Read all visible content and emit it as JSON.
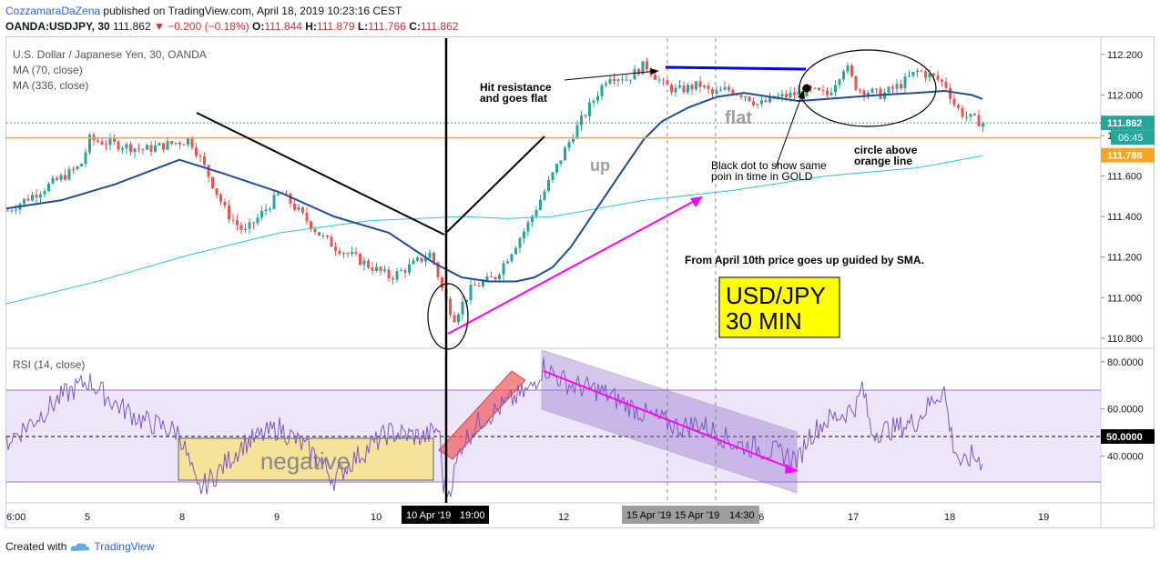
{
  "header": {
    "author": "CozzamaraDaZena",
    "published_text": "published on TradingView.com, April 18, 2019 10:23:16 CEST",
    "symbol": "OANDA:USDJPY, 30",
    "last": "111.862",
    "change": "−0.200 (−0.18%)",
    "o_label": "O:",
    "o": "111.844",
    "h_label": "H:",
    "h": "111.879",
    "l_label": "L:",
    "l": "111.766",
    "c_label": "C:",
    "c": "111.862"
  },
  "legend": {
    "title": "U.S. Dollar / Japanese Yen, 30, OANDA",
    "ma1": "MA (70, close)",
    "ma2": "MA (336, close)",
    "rsi": "RSI (14, close)"
  },
  "annotations": {
    "hit1": "Hit resistance",
    "hit2": "and goes flat",
    "flat": "flat",
    "up": "up",
    "circle1": "circle above",
    "circle2": "orange line",
    "dot1": "Black dot to show same",
    "dot2": "poin in time in GOLD",
    "april": "From April 10th price goes up guided by SMA.",
    "box1": "USD/JPY",
    "box2": "30 MIN",
    "negative": "negative"
  },
  "price_labels": {
    "last": "111.862",
    "countdown": "06:45",
    "orange": "111.788",
    "rsi_mid": "50.0000"
  },
  "time_labels": {
    "sel1": "10 Apr '19",
    "sel1b": "19:00",
    "sel2": "15 Apr '19",
    "sel3": "15 Apr '19",
    "sel3b": "14:30"
  },
  "footer": {
    "created": "Created with",
    "brand": "TradingView"
  },
  "colors": {
    "up": "#26a69a",
    "down": "#ef5350",
    "ma70": "#1e4d9b",
    "ma336": "#26c6da",
    "rsi": "#7e57c2",
    "orange": "#f5a623",
    "magenta": "#ff00ff",
    "blue_line": "#0000ff"
  },
  "chart_data": [
    {
      "type": "candlestick",
      "title": "U.S. Dollar / Japanese Yen, 30, OANDA",
      "x_tick_labels": [
        "6:00",
        "5",
        "8",
        "9",
        "10",
        "12",
        "15",
        "16",
        "17",
        "18",
        "19"
      ],
      "y_tick_labels": [
        "112.200",
        "112.000",
        "111.800",
        "111.600",
        "111.400",
        "111.200",
        "111.000",
        "110.800"
      ],
      "ylim": [
        110.75,
        112.28
      ],
      "anchors": {
        "x": [
          0,
          80,
          90,
          150,
          200,
          210,
          240,
          260,
          300,
          345,
          360,
          420,
          440,
          465,
          480,
          490,
          510,
          535,
          570,
          600,
          620,
          640,
          660,
          680,
          700,
          720,
          735,
          760,
          775,
          790,
          810,
          825,
          840,
          860,
          880,
          900,
          920,
          930,
          935,
          960,
          980,
          1000,
          1020,
          1030,
          1040,
          1050,
          1060,
          1072
        ],
        "close": [
          111.43,
          111.65,
          111.78,
          111.73,
          111.78,
          111.7,
          111.42,
          111.32,
          111.52,
          111.3,
          111.25,
          111.1,
          111.15,
          111.22,
          111.0,
          110.9,
          111.05,
          111.1,
          111.35,
          111.62,
          111.8,
          111.95,
          112.1,
          112.08,
          112.15,
          112.05,
          112.02,
          112.05,
          112.0,
          112.03,
          112.0,
          111.95,
          111.98,
          112.0,
          112.02,
          112.0,
          112.15,
          112.05,
          112.03,
          112.0,
          112.05,
          112.12,
          112.08,
          112.05,
          111.95,
          111.9,
          111.88,
          111.86
        ]
      },
      "series": [
        {
          "name": "MA (70, close)",
          "x": [
            0,
            60,
            120,
            190,
            240,
            300,
            360,
            420,
            470,
            500,
            530,
            560,
            580,
            600,
            620,
            650,
            680,
            700,
            720,
            750,
            780,
            810,
            840,
            870,
            900,
            930,
            960,
            1000,
            1030,
            1060,
            1072
          ],
          "values": [
            111.44,
            111.48,
            111.56,
            111.68,
            111.61,
            111.52,
            111.4,
            111.32,
            111.17,
            111.1,
            111.08,
            111.08,
            111.1,
            111.15,
            111.25,
            111.45,
            111.65,
            111.78,
            111.87,
            111.94,
            111.99,
            112.01,
            111.99,
            111.97,
            111.98,
            111.99,
            112.0,
            112.01,
            112.02,
            112.0,
            111.98
          ]
        },
        {
          "name": "MA (336, close)",
          "x": [
            0,
            100,
            200,
            300,
            400,
            500,
            550,
            600,
            700,
            800,
            900,
            1000,
            1072
          ],
          "values": [
            110.97,
            111.08,
            111.21,
            111.32,
            111.38,
            111.4,
            111.39,
            111.4,
            111.48,
            111.53,
            111.6,
            111.64,
            111.7
          ]
        }
      ],
      "orange_line": 111.788,
      "last_price": 111.862
    },
    {
      "type": "line",
      "title": "RSI (14, close)",
      "y_tick_labels": [
        "80.0000",
        "60.0000",
        "50.0000",
        "40.0000"
      ],
      "ylim": [
        20,
        85
      ],
      "band": [
        30,
        70
      ],
      "rsi_x": [
        0,
        30,
        60,
        90,
        120,
        150,
        190,
        200,
        210,
        230,
        260,
        300,
        340,
        360,
        380,
        420,
        460,
        475,
        480,
        485,
        490,
        500,
        520,
        540,
        560,
        575,
        590,
        600,
        620,
        650,
        680,
        700,
        720,
        740,
        760,
        780,
        800,
        830,
        860,
        870,
        880,
        900,
        920,
        935,
        940,
        950,
        980,
        1000,
        1020,
        1030,
        1035,
        1040,
        1050,
        1060,
        1070,
        1072
      ],
      "rsi": [
        46,
        55,
        65,
        72,
        62,
        55,
        50,
        38,
        25,
        32,
        45,
        52,
        40,
        30,
        38,
        50,
        48,
        52,
        28,
        24,
        30,
        45,
        55,
        60,
        65,
        68,
        78,
        75,
        70,
        68,
        62,
        58,
        55,
        52,
        54,
        50,
        45,
        43,
        40,
        38,
        48,
        55,
        58,
        62,
        70,
        50,
        52,
        55,
        65,
        68,
        55,
        45,
        35,
        40,
        38,
        38
      ]
    }
  ]
}
